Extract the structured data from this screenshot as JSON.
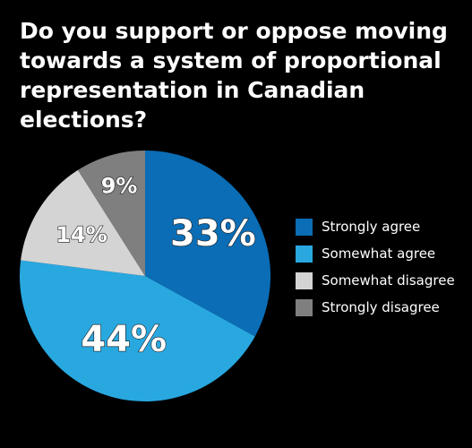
{
  "chart_data": {
    "type": "pie",
    "title": "Do you support or oppose moving\ntowards a system of  proportional\nrepresentation in Canadian elections?",
    "slices": [
      {
        "name": "Strongly agree",
        "value": 33,
        "label": "33%",
        "color": "#0a6db5"
      },
      {
        "name": "Somewhat agree",
        "value": 44,
        "label": "44%",
        "color": "#29a8e0"
      },
      {
        "name": "Somewhat disagree",
        "value": 14,
        "label": "14%",
        "color": "#d4d4d4"
      },
      {
        "name": "Strongly disagree",
        "value": 9,
        "label": "9%",
        "color": "#7f7f7f"
      }
    ],
    "legend_position": "right"
  }
}
